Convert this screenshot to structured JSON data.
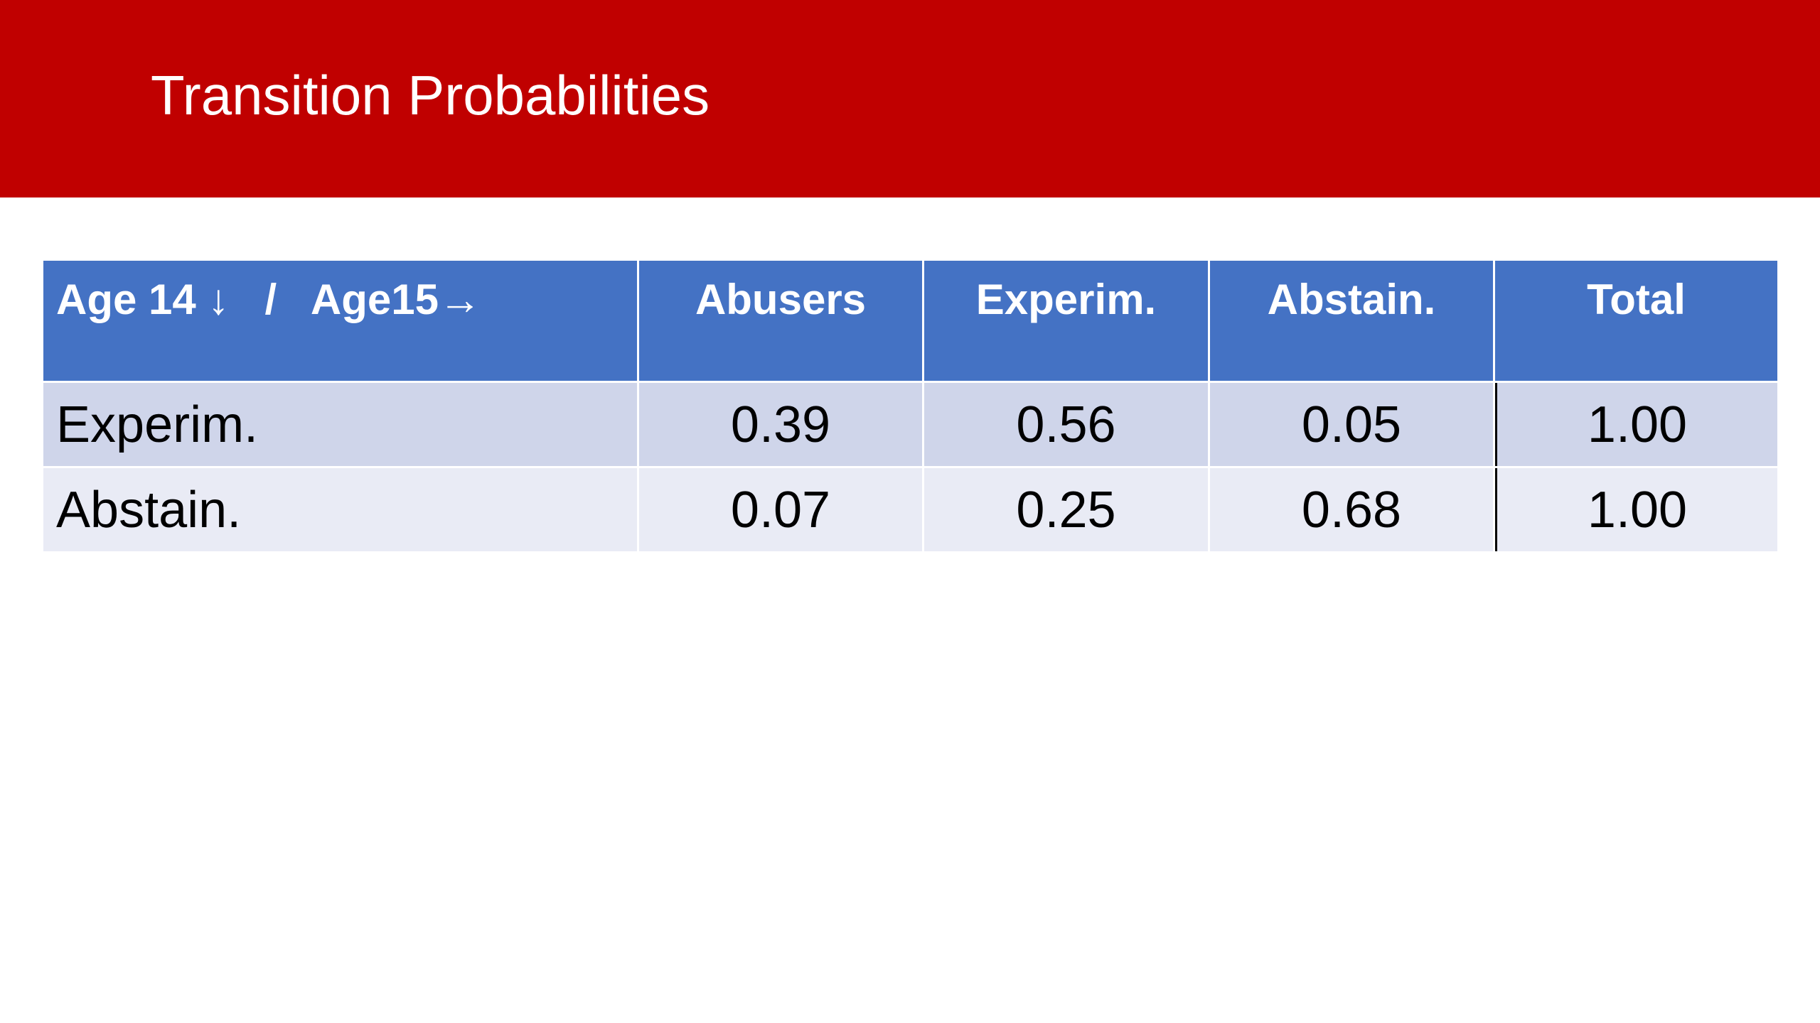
{
  "header": {
    "title": "Transition Probabilities"
  },
  "table": {
    "columns": [
      "Age 14 ↓   /   Age15→",
      "Abusers",
      "Experim.",
      "Abstain.",
      "Total"
    ],
    "rows": [
      [
        "Experim.",
        "0.39",
        "0.56",
        "0.05",
        "1.00"
      ],
      [
        "Abstain.",
        "0.07",
        "0.25",
        "0.68",
        "1.00"
      ]
    ]
  }
}
